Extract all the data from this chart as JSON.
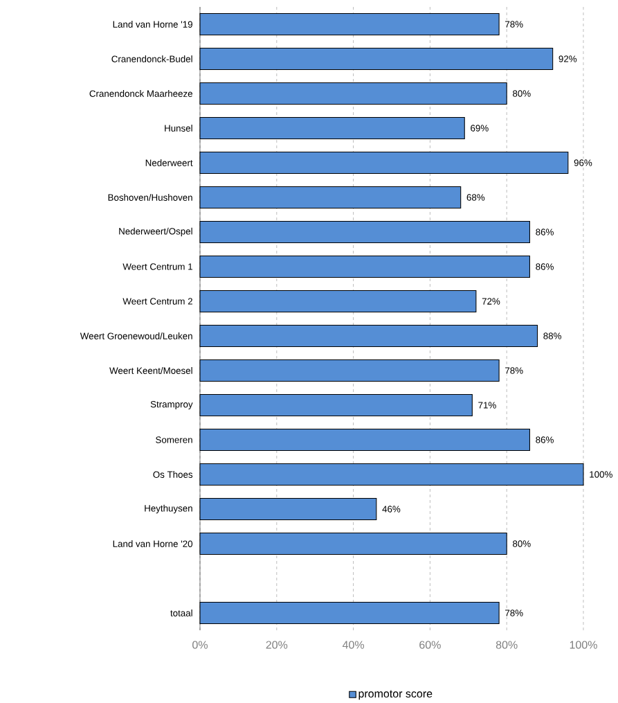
{
  "chart_data": {
    "type": "bar",
    "orientation": "horizontal",
    "categories": [
      "Land van Horne '19",
      "Cranendonck-Budel",
      "Cranendonck Maarheeze",
      "Hunsel",
      "Nederweert",
      "Boshoven/Hushoven",
      "Nederweert/Ospel",
      "Weert Centrum 1",
      "Weert Centrum 2",
      "Weert Groenewoud/Leuken",
      "Weert Keent/Moesel",
      "Stramproy",
      "Someren",
      "Os Thoes",
      "Heythuysen",
      "Land van Horne '20",
      null,
      "totaal"
    ],
    "series": [
      {
        "name": "promotor score",
        "color": "#558ed5",
        "values": [
          78,
          92,
          80,
          69,
          96,
          68,
          86,
          86,
          72,
          88,
          78,
          71,
          86,
          100,
          46,
          80,
          null,
          78
        ],
        "value_labels": [
          "78%",
          "92%",
          "80%",
          "69%",
          "96%",
          "68%",
          "86%",
          "86%",
          "72%",
          "88%",
          "78%",
          "71%",
          "86%",
          "100%",
          "46%",
          "80%",
          null,
          "78%"
        ]
      }
    ],
    "xlim": [
      0,
      100
    ],
    "xticks": [
      {
        "value": 0,
        "label": "0%"
      },
      {
        "value": 20,
        "label": "20%"
      },
      {
        "value": 40,
        "label": "40%"
      },
      {
        "value": 60,
        "label": "60%"
      },
      {
        "value": 80,
        "label": "80%"
      },
      {
        "value": 100,
        "label": "100%"
      }
    ],
    "grid": "x",
    "legend": "bottom"
  }
}
